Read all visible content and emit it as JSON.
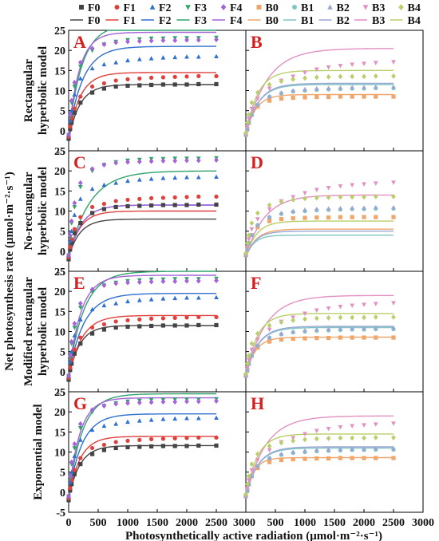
{
  "colors": {
    "F0": "#444444",
    "F1": "#e0403c",
    "F2": "#2f6fce",
    "F3": "#2fa36b",
    "F4": "#a463d6",
    "B0": "#f0a56a",
    "B1": "#7fc6c2",
    "B2": "#9aa7d6",
    "B3": "#e28fc2",
    "B4": "#b9cf6a"
  },
  "legend": {
    "markers_row": [
      {
        "key": "F0",
        "label": "F0",
        "marker": "square"
      },
      {
        "key": "F1",
        "label": "F1",
        "marker": "circle"
      },
      {
        "key": "F2",
        "label": "F2",
        "marker": "triangle"
      },
      {
        "key": "F3",
        "label": "F3",
        "marker": "triangle-down"
      },
      {
        "key": "F4",
        "label": "F4",
        "marker": "diamond"
      },
      {
        "key": "B0",
        "label": "B0",
        "marker": "square"
      },
      {
        "key": "B1",
        "label": "B1",
        "marker": "circle"
      },
      {
        "key": "B2",
        "label": "B2",
        "marker": "triangle"
      },
      {
        "key": "B3",
        "label": "B3",
        "marker": "triangle-down"
      },
      {
        "key": "B4",
        "label": "B4",
        "marker": "diamond"
      }
    ],
    "lines_row": [
      {
        "key": "F0",
        "label": "F0"
      },
      {
        "key": "F1",
        "label": "F1"
      },
      {
        "key": "F2",
        "label": "F2"
      },
      {
        "key": "F3",
        "label": "F3"
      },
      {
        "key": "F4",
        "label": "F4"
      },
      {
        "key": "B0",
        "label": "B0"
      },
      {
        "key": "B1",
        "label": "B1"
      },
      {
        "key": "B2",
        "label": "B2"
      },
      {
        "key": "B3",
        "label": "B3"
      },
      {
        "key": "B4",
        "label": "B4"
      }
    ]
  },
  "chart_data": {
    "type": "scatter",
    "xlabel": "Photosynthetically active radiation (μmol·m⁻²·s⁻¹)",
    "ylabel": "Net photosynthesis rate (μmol·m⁻²·s⁻¹)",
    "x_ticks": [
      "0",
      "500",
      "1000",
      "1500",
      "2000",
      "2500",
      "3000"
    ],
    "x_ticks_right": [
      "500",
      "1000",
      "1500",
      "2000",
      "2500",
      "3000"
    ],
    "y_ticks": [
      "-5",
      "0",
      "5",
      "10",
      "15",
      "20",
      "25"
    ],
    "xlim": [
      0,
      3000
    ],
    "ylim": [
      -5,
      25
    ],
    "par": [
      0,
      25,
      50,
      100,
      200,
      400,
      600,
      800,
      1000,
      1200,
      1400,
      1600,
      1800,
      2000,
      2200,
      2500
    ],
    "observed": {
      "F0": [
        -2,
        0.5,
        2,
        4.5,
        7,
        9.5,
        10.5,
        11,
        11.2,
        11.3,
        11.4,
        11.5,
        11.5,
        11.5,
        11.6,
        11.6
      ],
      "F1": [
        -1.5,
        1,
        3,
        5.5,
        8.5,
        11,
        11.8,
        12.5,
        12.8,
        13.0,
        13.2,
        13.3,
        13.4,
        13.5,
        13.6,
        13.6
      ],
      "F2": [
        -1,
        2.5,
        5,
        9,
        13,
        15.5,
        16.5,
        17,
        17.5,
        17.8,
        18,
        18.2,
        18.3,
        18.4,
        18.4,
        18.5
      ],
      "F3": [
        -1,
        3.5,
        7,
        11,
        16,
        20,
        21.5,
        22.2,
        22.6,
        22.8,
        23,
        23,
        23.1,
        23.1,
        23.1,
        23.2
      ],
      "F4": [
        -1,
        4,
        7.5,
        12,
        17,
        20.5,
        21.5,
        22,
        22.2,
        22.3,
        22.4,
        22.5,
        22.5,
        22.6,
        22.6,
        22.7
      ],
      "B0": [
        -1,
        0.5,
        2,
        4,
        6,
        7.5,
        8,
        8.2,
        8.3,
        8.4,
        8.4,
        8.5,
        8.5,
        8.5,
        8.5,
        8.5
      ],
      "B1": [
        -1,
        0.5,
        2,
        4,
        6.5,
        8.5,
        9.3,
        9.8,
        10,
        10.2,
        10.3,
        10.4,
        10.5,
        10.5,
        10.6,
        10.6
      ],
      "B2": [
        -1,
        0.5,
        2,
        4,
        6.5,
        8.5,
        9.5,
        10,
        10.3,
        10.5,
        10.6,
        10.7,
        10.8,
        10.8,
        10.9,
        10.9
      ],
      "B3": [
        -1,
        1,
        3,
        5.5,
        8,
        10.5,
        12.5,
        13.5,
        14.5,
        15.3,
        15.8,
        16.2,
        16.5,
        16.7,
        16.9,
        17.1
      ],
      "B4": [
        -0.5,
        2,
        4,
        7,
        9.5,
        11.5,
        12.3,
        12.8,
        13.1,
        13.3,
        13.4,
        13.5,
        13.5,
        13.5,
        13.6,
        13.6
      ]
    },
    "panels": [
      {
        "id": "A",
        "row": 1,
        "side": "left",
        "series": [
          "F0",
          "F1",
          "F2",
          "F3",
          "F4"
        ],
        "fit": {
          "F0": {
            "a": 0.07,
            "p": 13.5,
            "r": 2
          },
          "F1": {
            "a": 0.08,
            "p": 16,
            "r": 1.5
          },
          "F2": {
            "a": 0.09,
            "p": 22,
            "r": 1
          },
          "F3": {
            "a": 0.12,
            "p": 27.5,
            "r": 1
          },
          "F4": {
            "a": 0.14,
            "p": 25.5,
            "r": 1
          }
        }
      },
      {
        "id": "B",
        "row": 1,
        "side": "right",
        "series": [
          "B0",
          "B1",
          "B2",
          "B3",
          "B4"
        ],
        "fit": {
          "B0": {
            "a": 0.06,
            "p": 10,
            "r": 1
          },
          "B1": {
            "a": 0.06,
            "p": 12.5,
            "r": 1
          },
          "B2": {
            "a": 0.06,
            "p": 12.8,
            "r": 1
          },
          "B3": {
            "a": 0.06,
            "p": 21.5,
            "r": 1
          },
          "B4": {
            "a": 0.08,
            "p": 16,
            "r": 1
          }
        }
      },
      {
        "id": "C",
        "row": 2,
        "side": "left",
        "series": [
          "F0",
          "F1",
          "F2",
          "F3",
          "F4"
        ],
        "fit": {
          "F0": {
            "a": 0.05,
            "p": 9.5,
            "r": 1.5
          },
          "F1": {
            "a": 0.06,
            "p": 11.5,
            "r": 1.5
          },
          "F2": {
            "a": 0.06,
            "p": 13,
            "r": 1.5
          },
          "F3": {
            "a": 0.06,
            "p": 21.5,
            "r": 1.5
          },
          "F4": {
            "a": 0.06,
            "p": 13,
            "r": 1.5
          }
        }
      },
      {
        "id": "D",
        "row": 2,
        "side": "right",
        "series": [
          "B0",
          "B1",
          "B2",
          "B3",
          "B4"
        ],
        "fit": {
          "B0": {
            "a": 0.04,
            "p": 7,
            "r": 1.5
          },
          "B1": {
            "a": 0.04,
            "p": 5.5,
            "r": 1.5
          },
          "B2": {
            "a": 0.04,
            "p": 6.5,
            "r": 1.5
          },
          "B3": {
            "a": 0.05,
            "p": 15.5,
            "r": 1.5
          },
          "B4": {
            "a": 0.05,
            "p": 9,
            "r": 1.5
          }
        }
      },
      {
        "id": "E",
        "row": 3,
        "side": "left",
        "series": [
          "F0",
          "F1",
          "F2",
          "F3",
          "F4"
        ],
        "fit": {
          "F0": {
            "a": 0.07,
            "p": 13,
            "r": 1.5
          },
          "F1": {
            "a": 0.07,
            "p": 15.5,
            "r": 1.5
          },
          "F2": {
            "a": 0.08,
            "p": 20.5,
            "r": 1
          },
          "F3": {
            "a": 0.1,
            "p": 26,
            "r": 1
          },
          "F4": {
            "a": 0.12,
            "p": 25,
            "r": 1
          }
        }
      },
      {
        "id": "F",
        "row": 3,
        "side": "right",
        "series": [
          "B0",
          "B1",
          "B2",
          "B3",
          "B4"
        ],
        "fit": {
          "B0": {
            "a": 0.06,
            "p": 9.6,
            "r": 1
          },
          "B1": {
            "a": 0.06,
            "p": 12,
            "r": 1
          },
          "B2": {
            "a": 0.06,
            "p": 12.3,
            "r": 1
          },
          "B3": {
            "a": 0.06,
            "p": 20,
            "r": 1
          },
          "B4": {
            "a": 0.08,
            "p": 15.5,
            "r": 1
          }
        }
      },
      {
        "id": "G",
        "row": 4,
        "side": "left",
        "series": [
          "F0",
          "F1",
          "F2",
          "F3",
          "F4"
        ],
        "fit": {
          "F0": {
            "a": 0.07,
            "p": 13.2,
            "r": 1.6
          },
          "F1": {
            "a": 0.08,
            "p": 15.4,
            "r": 1.5
          },
          "F2": {
            "a": 0.09,
            "p": 20.5,
            "r": 1
          },
          "F3": {
            "a": 0.11,
            "p": 25.5,
            "r": 1
          },
          "F4": {
            "a": 0.13,
            "p": 24.5,
            "r": 1
          }
        }
      },
      {
        "id": "H",
        "row": 4,
        "side": "right",
        "series": [
          "B0",
          "B1",
          "B2",
          "B3",
          "B4"
        ],
        "fit": {
          "B0": {
            "a": 0.07,
            "p": 9.6,
            "r": 1
          },
          "B1": {
            "a": 0.06,
            "p": 12,
            "r": 1
          },
          "B2": {
            "a": 0.06,
            "p": 12.3,
            "r": 1
          },
          "B3": {
            "a": 0.06,
            "p": 20,
            "r": 1
          },
          "B4": {
            "a": 0.08,
            "p": 15.5,
            "r": 1
          }
        }
      }
    ],
    "row_labels": [
      {
        "row": 1,
        "lines": [
          "Rectangular",
          "hyperbolic model"
        ]
      },
      {
        "row": 2,
        "lines": [
          "No-rectangular",
          "hyperbolic model"
        ]
      },
      {
        "row": 3,
        "lines": [
          "Modified rectangular",
          "hyperbolic model"
        ]
      },
      {
        "row": 4,
        "lines": [
          "Exponential model"
        ]
      }
    ]
  }
}
